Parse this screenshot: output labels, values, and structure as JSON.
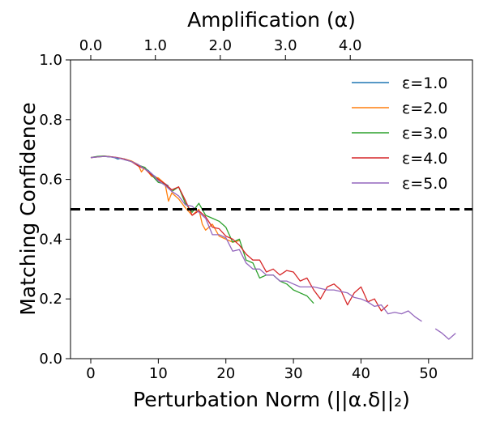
{
  "chart_data": {
    "type": "line",
    "xlabel": "Perturbation Norm (||α.δ||₂)",
    "ylabel": "Matching Confidence",
    "top_xlabel": "Amplification (α)",
    "xlim": [
      -3,
      56.5
    ],
    "ylim": [
      0,
      1
    ],
    "xticks": [
      0,
      10,
      20,
      30,
      40,
      50
    ],
    "xtick_labels": [
      "0",
      "10",
      "20",
      "30",
      "40",
      "50"
    ],
    "yticks": [
      0,
      0.2,
      0.4,
      0.6,
      0.8,
      1.0
    ],
    "ytick_labels": [
      "0.0",
      "0.2",
      "0.4",
      "0.6",
      "0.8",
      "1.0"
    ],
    "top_ticks_at_x": [
      0,
      9.56,
      19.17,
      28.82,
      38.41
    ],
    "top_tick_labels": [
      "0.0",
      "1.0",
      "2.0",
      "3.0",
      "4.0"
    ],
    "threshold": 0.5,
    "legend_position": "top-right",
    "grid": false,
    "series": [
      {
        "name": "ε=1.0",
        "color": "#1f77b4",
        "x": [
          0,
          0.5,
          1,
          1.5,
          2,
          2.5,
          3,
          3.5,
          4,
          4.5,
          5,
          5.5,
          6,
          6.5,
          7,
          7.5,
          8,
          8.5,
          9,
          9.5,
          10,
          10.5,
          11,
          11.5
        ],
        "y": [
          0.673,
          0.675,
          0.676,
          0.677,
          0.678,
          0.676,
          0.675,
          0.673,
          0.668,
          0.671,
          0.666,
          0.663,
          0.66,
          0.655,
          0.649,
          0.642,
          0.636,
          0.63,
          0.619,
          0.61,
          0.601,
          0.593,
          0.585,
          0.578
        ]
      },
      {
        "name": "ε=2.0",
        "color": "#ff7f0e",
        "x": [
          0,
          1,
          2,
          3,
          4,
          5,
          6,
          7,
          7.5,
          8,
          9,
          10,
          11,
          11.5,
          12,
          13,
          14,
          15,
          16,
          16.5,
          17,
          18,
          19,
          20,
          21,
          22
        ],
        "y": [
          0.673,
          0.676,
          0.678,
          0.676,
          0.672,
          0.668,
          0.662,
          0.65,
          0.625,
          0.64,
          0.61,
          0.605,
          0.585,
          0.527,
          0.555,
          0.535,
          0.505,
          0.48,
          0.5,
          0.45,
          0.43,
          0.45,
          0.41,
          0.4,
          0.39,
          0.395
        ]
      },
      {
        "name": "ε=3.0",
        "color": "#2ca02c",
        "x": [
          0,
          1,
          2,
          3,
          4,
          5,
          6,
          7,
          8,
          9,
          10,
          11,
          12,
          13,
          14,
          15,
          16,
          17,
          18,
          19,
          20,
          21,
          22,
          23,
          24,
          25,
          26,
          27,
          28,
          29,
          30,
          31,
          32,
          33
        ],
        "y": [
          0.673,
          0.677,
          0.678,
          0.676,
          0.672,
          0.668,
          0.66,
          0.648,
          0.64,
          0.615,
          0.59,
          0.585,
          0.56,
          0.575,
          0.52,
          0.49,
          0.52,
          0.48,
          0.47,
          0.46,
          0.44,
          0.39,
          0.4,
          0.33,
          0.32,
          0.27,
          0.28,
          0.28,
          0.26,
          0.25,
          0.23,
          0.22,
          0.21,
          0.185
        ]
      },
      {
        "name": "ε=4.0",
        "color": "#d62728",
        "x": [
          0,
          1,
          2,
          3,
          4,
          5,
          6,
          7,
          8,
          9,
          10,
          11,
          12,
          13,
          14,
          15,
          16,
          17,
          18,
          19,
          20,
          21,
          22,
          23,
          24,
          25,
          26,
          27,
          28,
          29,
          30,
          31,
          32,
          33,
          34,
          35,
          36,
          37,
          38,
          39,
          40,
          41,
          42,
          43,
          44
        ],
        "y": [
          0.673,
          0.675,
          0.677,
          0.676,
          0.673,
          0.668,
          0.66,
          0.645,
          0.635,
          0.615,
          0.6,
          0.585,
          0.565,
          0.575,
          0.53,
          0.48,
          0.495,
          0.475,
          0.44,
          0.435,
          0.41,
          0.4,
          0.38,
          0.35,
          0.33,
          0.33,
          0.29,
          0.3,
          0.28,
          0.295,
          0.29,
          0.26,
          0.27,
          0.23,
          0.2,
          0.24,
          0.25,
          0.23,
          0.18,
          0.22,
          0.24,
          0.19,
          0.2,
          0.16,
          0.18
        ]
      },
      {
        "name": "ε=5.0",
        "color": "#9467bd",
        "x": [
          0,
          1,
          2,
          3,
          4,
          5,
          6,
          7,
          8,
          9,
          10,
          11,
          12,
          13,
          14,
          15,
          16,
          17,
          18,
          19,
          20,
          21,
          22,
          23,
          24,
          25,
          26,
          27,
          28,
          29,
          30,
          31,
          32,
          33,
          34,
          35,
          36,
          37,
          38,
          39,
          40,
          41,
          42,
          43,
          44,
          45,
          46,
          47,
          48,
          49,
          null,
          51,
          52,
          53,
          54
        ],
        "y": [
          0.673,
          0.675,
          0.677,
          0.675,
          0.672,
          0.666,
          0.66,
          0.65,
          0.635,
          0.62,
          0.595,
          0.58,
          0.56,
          0.545,
          0.515,
          0.51,
          0.49,
          0.47,
          0.415,
          0.415,
          0.405,
          0.36,
          0.365,
          0.32,
          0.3,
          0.3,
          0.28,
          0.28,
          0.26,
          0.26,
          0.25,
          0.24,
          0.24,
          0.24,
          0.235,
          0.23,
          0.23,
          0.225,
          0.22,
          0.205,
          0.2,
          0.19,
          0.175,
          0.18,
          0.15,
          0.155,
          0.15,
          0.16,
          0.14,
          0.125,
          null,
          0.1,
          0.085,
          0.065,
          0.085
        ]
      }
    ]
  }
}
